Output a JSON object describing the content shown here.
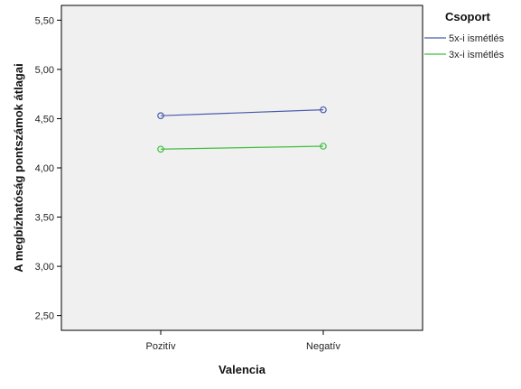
{
  "chart_data": {
    "type": "line",
    "xlabel": "Valencia",
    "ylabel": "A megbízhatóság pontszámok átlagai",
    "categories": [
      "Pozitív",
      "Negatív"
    ],
    "ylim": [
      2.35,
      5.65
    ],
    "yticks": [
      "2,50",
      "3,00",
      "3,50",
      "4,00",
      "4,50",
      "5,00",
      "5,50"
    ],
    "ytick_values": [
      2.5,
      3.0,
      3.5,
      4.0,
      4.5,
      5.0,
      5.5
    ],
    "legend_title": "Csoport",
    "legend_position": "right",
    "grid": false,
    "plot_background": "#f0f0f0",
    "series": [
      {
        "name": "5x-i ismétlés",
        "color": "#4a5aad",
        "values": [
          4.53,
          4.59
        ]
      },
      {
        "name": "3x-i ismétlés",
        "color": "#3fbf3f",
        "values": [
          4.19,
          4.22
        ]
      }
    ]
  }
}
